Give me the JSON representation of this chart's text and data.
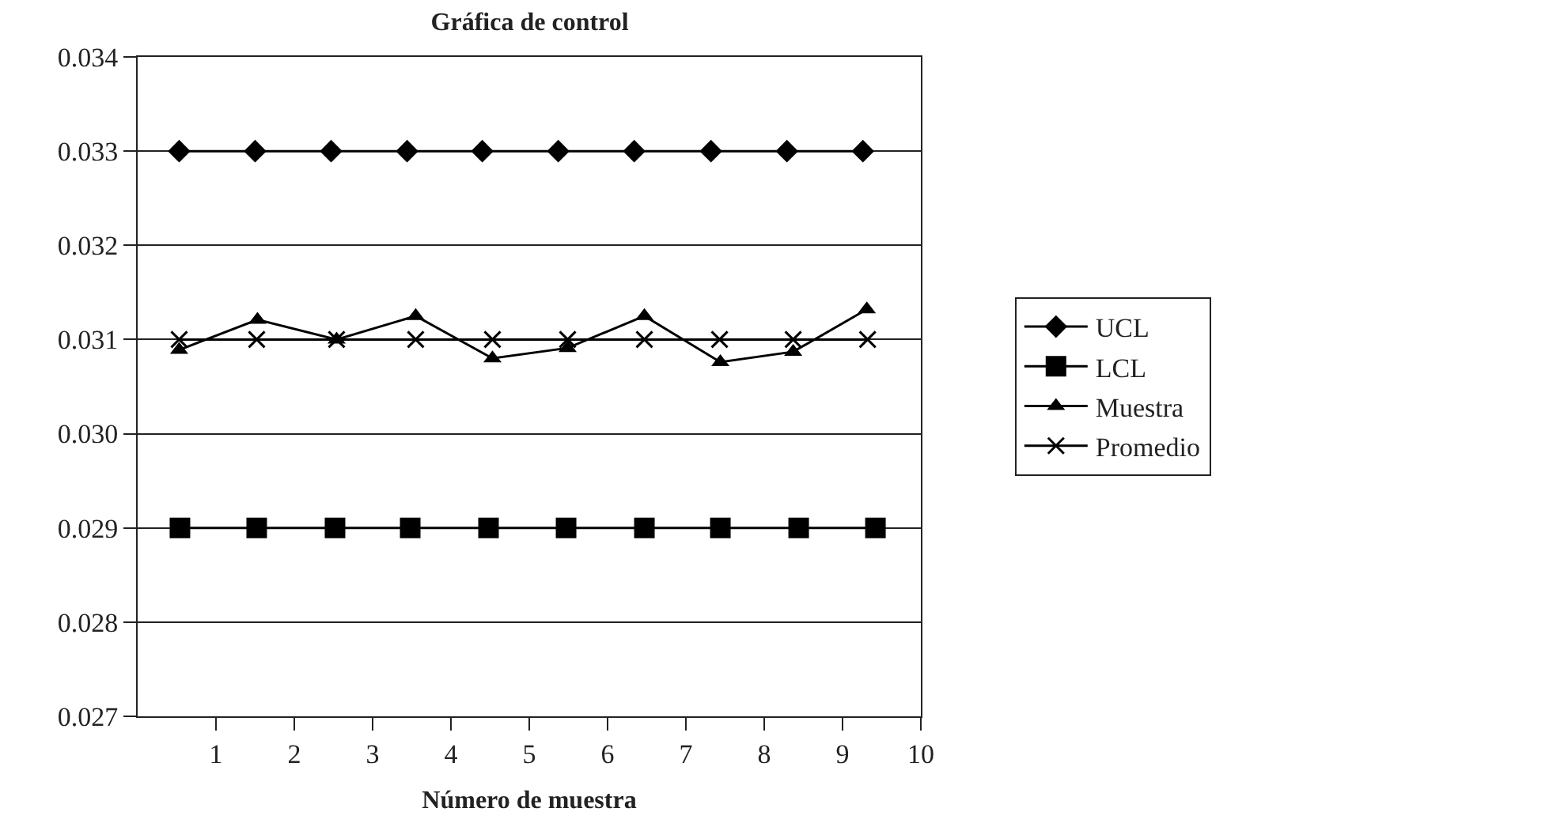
{
  "chart_data": {
    "type": "line",
    "title": "Gráfica de control",
    "xlabel": "Número de muestra",
    "xlim": [
      0,
      10
    ],
    "xticks": [
      1,
      2,
      3,
      4,
      5,
      6,
      7,
      8,
      9,
      10
    ],
    "ylim": [
      0.027,
      0.034
    ],
    "yticks": [
      0.027,
      0.028,
      0.029,
      {
        "value": 0.03,
        "label": "0.030"
      },
      0.031,
      0.032,
      0.033,
      0.034
    ],
    "grid": "y",
    "legend": "right",
    "line_style": "solid",
    "series": [
      {
        "name": "UCL",
        "color": "#000000",
        "marker": "diamond",
        "x": [
          0.53,
          1.5,
          2.47,
          3.44,
          4.4,
          5.37,
          6.34,
          7.32,
          8.29,
          9.26
        ],
        "values": [
          0.033,
          0.033,
          0.033,
          0.033,
          0.033,
          0.033,
          0.033,
          0.033,
          0.033,
          0.033
        ]
      },
      {
        "name": "LCL",
        "color": "#000000",
        "marker": "square",
        "x": [
          0.54,
          1.52,
          2.52,
          3.48,
          4.48,
          5.47,
          6.47,
          7.44,
          8.44,
          9.42
        ],
        "values": [
          0.029,
          0.029,
          0.029,
          0.029,
          0.029,
          0.029,
          0.029,
          0.029,
          0.029,
          0.029
        ]
      },
      {
        "name": "Muestra",
        "color": "#000000",
        "marker": "triangle",
        "x": [
          0.53,
          1.53,
          2.54,
          3.55,
          4.53,
          5.49,
          6.47,
          7.44,
          8.37,
          9.31
        ],
        "values": [
          0.03089,
          0.03121,
          0.031,
          0.03125,
          0.0308,
          0.03091,
          0.03125,
          0.03076,
          0.03087,
          0.03132
        ]
      },
      {
        "name": "Promedio",
        "color": "#000000",
        "marker": "cross",
        "x": [
          0.53,
          1.52,
          2.54,
          3.55,
          4.53,
          5.49,
          6.47,
          7.43,
          8.37,
          9.32
        ],
        "values": [
          0.031,
          0.031,
          0.031,
          0.031,
          0.031,
          0.031,
          0.031,
          0.031,
          0.031,
          0.031
        ]
      }
    ]
  }
}
